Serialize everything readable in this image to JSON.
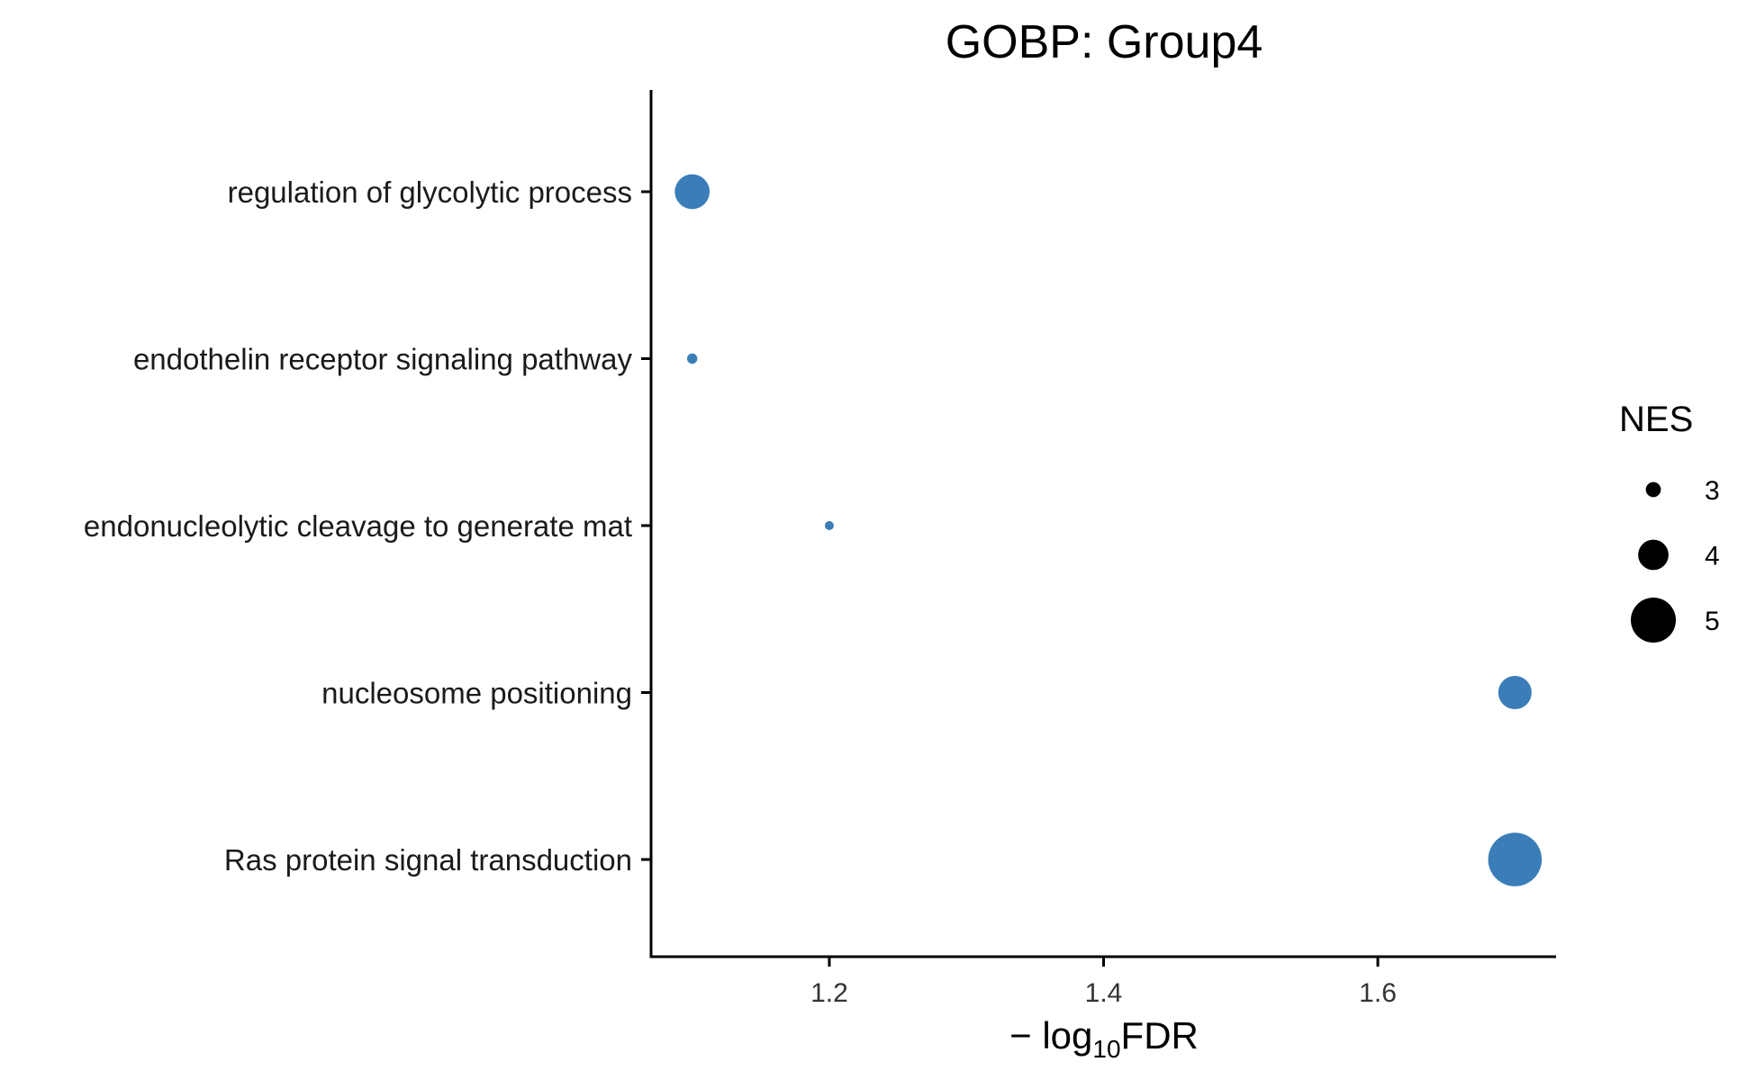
{
  "chart_data": {
    "type": "scatter",
    "title": "GOBP: Group4",
    "xlabel": {
      "prefix": "−",
      "main": "log",
      "subscript": "10",
      "suffix": "FDR"
    },
    "ylabel": "",
    "xlim": [
      1.07,
      1.73
    ],
    "x_ticks": [
      1.2,
      1.4,
      1.6
    ],
    "x_tick_labels": [
      "1.2",
      "1.4",
      "1.6"
    ],
    "categories": [
      "regulation of glycolytic process",
      "endothelin receptor signaling pathway",
      "endonucleolytic cleavage to generate mat",
      "nucleosome positioning",
      "Ras protein signal transduction"
    ],
    "points": [
      {
        "category": "regulation of glycolytic process",
        "x": 1.1,
        "nes": 4.3
      },
      {
        "category": "endothelin receptor signaling pathway",
        "x": 1.1,
        "nes": 2.7
      },
      {
        "category": "endonucleolytic cleavage to generate mat",
        "x": 1.2,
        "nes": 2.4
      },
      {
        "category": "nucleosome positioning",
        "x": 1.7,
        "nes": 4.2
      },
      {
        "category": "Ras protein signal transduction",
        "x": 1.7,
        "nes": 5.6
      }
    ],
    "size_legend": {
      "title": "NES",
      "values": [
        3,
        4,
        5
      ],
      "labels": [
        "3",
        "4",
        "5"
      ]
    },
    "point_color": "#3A7DB8",
    "legend_color": "#000000",
    "axis_color": "#000000",
    "grid": false,
    "legend_position": "right"
  }
}
